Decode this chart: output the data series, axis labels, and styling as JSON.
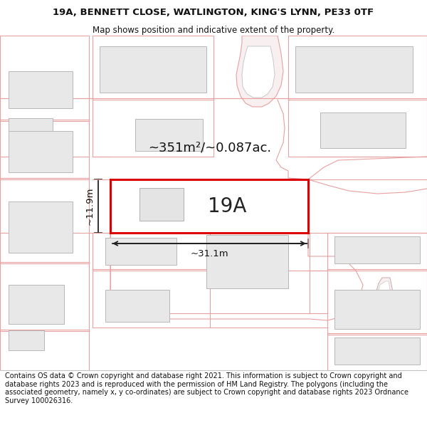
{
  "title_line1": "19A, BENNETT CLOSE, WATLINGTON, KING'S LYNN, PE33 0TF",
  "title_line2": "Map shows position and indicative extent of the property.",
  "footer_text": "Contains OS data © Crown copyright and database right 2021. This information is subject to Crown copyright and database rights 2023 and is reproduced with the permission of HM Land Registry. The polygons (including the associated geometry, namely x, y co-ordinates) are subject to Crown copyright and database rights 2023 Ordnance Survey 100026316.",
  "area_label": "~351m²/~0.087ac.",
  "label_19A": "19A",
  "width_label": "~31.1m",
  "height_label": "~11.9m",
  "bg_color": "#ffffff",
  "map_bg": "#ffffff",
  "building_fill": "#e8e8e8",
  "building_edge": "#b8b8b8",
  "highlight_color": "#dd0000",
  "highlight_fill": "#ffffff",
  "map_line_color": "#e8a0a0",
  "dark_line": "#222222",
  "title_fontsize": 9.5,
  "subtitle_fontsize": 8.5,
  "footer_fontsize": 7.0,
  "area_fontsize": 13,
  "label_fontsize": 20,
  "dim_fontsize": 9.5
}
